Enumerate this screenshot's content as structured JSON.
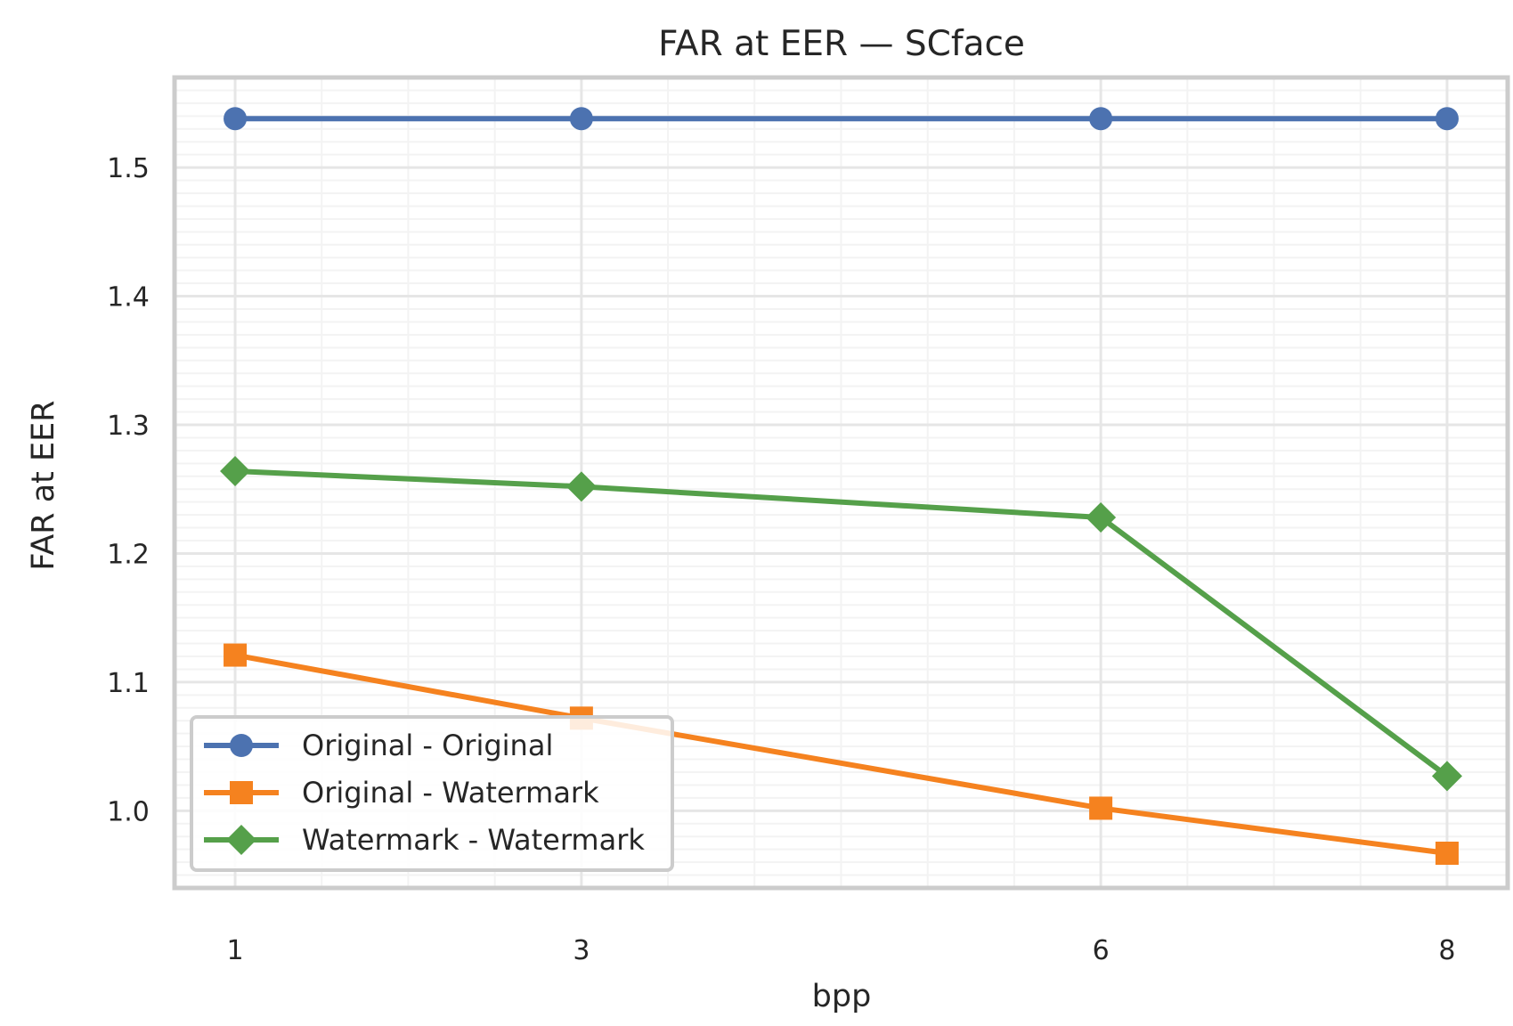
{
  "chart_data": {
    "type": "line",
    "title": "FAR at EER — SCface",
    "xlabel": "bpp",
    "ylabel": "FAR at EER",
    "x": [
      1,
      3,
      6,
      8
    ],
    "x_tick_labels": [
      "1",
      "3",
      "6",
      "8"
    ],
    "xlim": [
      0.65,
      8.35
    ],
    "ylim": [
      0.94,
      1.57
    ],
    "y_ticks": [
      1.0,
      1.1,
      1.2,
      1.3,
      1.4,
      1.5
    ],
    "y_tick_labels": [
      "1.0",
      "1.1",
      "1.2",
      "1.3",
      "1.4",
      "1.5"
    ],
    "grid": true,
    "legend_position": "lower-left",
    "series": [
      {
        "name": "Original - Original",
        "values": [
          1.538,
          1.538,
          1.538,
          1.538
        ],
        "color": "#4c72b0",
        "marker": "circle"
      },
      {
        "name": "Original - Watermark",
        "values": [
          1.121,
          1.072,
          1.002,
          0.967
        ],
        "color": "#f5821f",
        "marker": "square"
      },
      {
        "name": "Watermark - Watermark",
        "values": [
          1.264,
          1.252,
          1.228,
          1.027
        ],
        "color": "#55a04a",
        "marker": "diamond"
      }
    ]
  }
}
